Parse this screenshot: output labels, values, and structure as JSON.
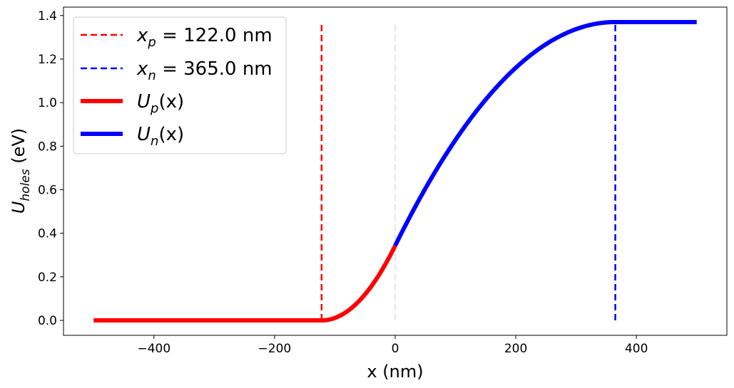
{
  "chart_data": {
    "type": "line",
    "xlabel": "x (nm)",
    "ylabel": {
      "main": "U",
      "sub": "holes",
      "unit": " (eV)"
    },
    "xlim": [
      -550,
      550
    ],
    "ylim": [
      -0.0685,
      1.4385
    ],
    "x_ticks": [
      -400,
      -200,
      0,
      200,
      400
    ],
    "y_ticks": [
      0.0,
      0.2,
      0.4,
      0.6,
      0.8,
      1.0,
      1.2,
      1.4
    ],
    "grid": false,
    "legend_position": "top-left",
    "params": {
      "xp": 122.0,
      "xn": 365.0,
      "U_max": 1.37
    },
    "series": [
      {
        "legend_sym": "x",
        "legend_sub": "p",
        "legend_rest": " = 122.0 nm",
        "style": "dashed",
        "color": "#ff0000",
        "points": [
          [
            -122.0,
            0.0
          ],
          [
            -122.0,
            1.37
          ]
        ]
      },
      {
        "legend_sym": "x",
        "legend_sub": "n",
        "legend_rest": " = 365.0 nm",
        "style": "dashed",
        "color": "#0000ff",
        "points": [
          [
            365.0,
            0.0
          ],
          [
            365.0,
            1.37
          ]
        ]
      },
      {
        "legend_sym": "U",
        "legend_sub": "p",
        "legend_rest": "(x)",
        "style": "solid",
        "color": "#ff0000",
        "domain": [
          -500,
          0
        ]
      },
      {
        "legend_sym": "U",
        "legend_sub": "n",
        "legend_rest": "(x)",
        "style": "solid",
        "color": "#0000ff",
        "domain": [
          0,
          500
        ]
      }
    ],
    "reference_line": {
      "x": 0,
      "color": "#e6e6e6",
      "style": "dashed",
      "y_range": [
        0.0,
        1.37
      ]
    }
  }
}
